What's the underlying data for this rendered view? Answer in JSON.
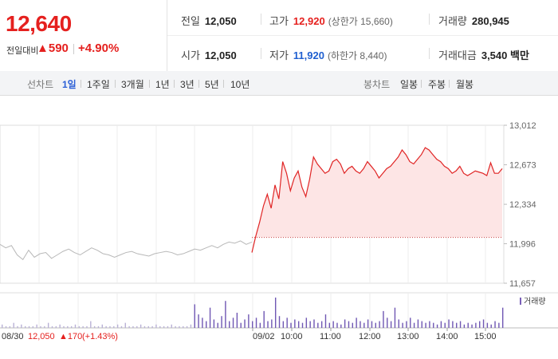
{
  "quote": {
    "price": "12,640",
    "change_label": "전일대비",
    "change_arrow": "▲",
    "change_value": "590",
    "change_percent": "+4.90%"
  },
  "stats": {
    "prev_close": {
      "label": "전일",
      "value": "12,050"
    },
    "high": {
      "label": "고가",
      "value": "12,920",
      "sub": "(상한가 15,660)"
    },
    "volume": {
      "label": "거래량",
      "value": "280,945"
    },
    "open": {
      "label": "시가",
      "value": "12,050"
    },
    "low": {
      "label": "저가",
      "value": "11,920",
      "sub": "(하한가 8,440)"
    },
    "amount": {
      "label": "거래대금",
      "value": "3,540 백만"
    }
  },
  "toolbar": {
    "line_chart_label": "선차트",
    "line_ranges": [
      "1일",
      "1주일",
      "3개월",
      "1년",
      "3년",
      "5년",
      "10년"
    ],
    "selected_range": "1일",
    "candle_chart_label": "봉차트",
    "candle_ranges": [
      "일봉",
      "주봉",
      "월봉"
    ]
  },
  "chart_data": {
    "type": "line",
    "y_ticks": [
      "13,012",
      "12,673",
      "12,334",
      "11,996",
      "11,657"
    ],
    "ylim": [
      11657,
      13012
    ],
    "prev_close_reference": 12050,
    "x_tick_labels": [
      "09/02",
      "10:00",
      "11:00",
      "12:00",
      "13:00",
      "14:00",
      "15:00"
    ],
    "prev_day": {
      "date_label": "08/30",
      "close": "12,050",
      "change": "▲170",
      "change_percent": "(+1.43%)",
      "values": [
        11990,
        11960,
        11980,
        11900,
        11860,
        11940,
        11880,
        11910,
        11920,
        11870,
        11900,
        11930,
        11950,
        11920,
        11900,
        11930,
        11960,
        11940,
        11910,
        11900,
        11880,
        11900,
        11920,
        11930,
        11910,
        11900,
        11890,
        11910,
        11920,
        11930,
        11920,
        11900,
        11910,
        11930,
        11950,
        11940,
        11960,
        11980,
        11960,
        11990,
        12010,
        12000,
        12020,
        11990,
        12010
      ]
    },
    "today": {
      "values": [
        11920,
        12060,
        12180,
        12320,
        12420,
        12300,
        12500,
        12380,
        12700,
        12600,
        12450,
        12560,
        12620,
        12480,
        12400,
        12550,
        12740,
        12680,
        12640,
        12600,
        12620,
        12700,
        12720,
        12680,
        12600,
        12640,
        12660,
        12620,
        12600,
        12640,
        12700,
        12660,
        12620,
        12560,
        12600,
        12640,
        12660,
        12700,
        12740,
        12800,
        12760,
        12700,
        12680,
        12720,
        12760,
        12820,
        12800,
        12760,
        12720,
        12700,
        12660,
        12640,
        12600,
        12620,
        12660,
        12600,
        12580,
        12600,
        12620,
        12610,
        12600,
        12580,
        12690,
        12600,
        12600,
        12640
      ]
    },
    "volume_label": "거래량",
    "volume_bars": [
      2,
      1,
      1,
      3,
      1,
      2,
      1,
      1,
      1,
      2,
      1,
      1,
      3,
      1,
      1,
      2,
      1,
      1,
      1,
      2,
      1,
      1,
      1,
      4,
      1,
      1,
      2,
      1,
      1,
      1,
      2,
      1,
      3,
      1,
      1,
      1,
      2,
      1,
      1,
      1,
      2,
      1,
      1,
      1,
      2,
      1,
      1,
      1,
      1,
      2,
      14,
      8,
      6,
      4,
      12,
      5,
      3,
      7,
      16,
      4,
      6,
      9,
      3,
      5,
      8,
      4,
      6,
      3,
      10,
      4,
      5,
      18,
      7,
      4,
      6,
      3,
      5,
      4,
      3,
      6,
      4,
      5,
      3,
      4,
      8,
      3,
      4,
      3,
      2,
      5,
      4,
      3,
      6,
      4,
      3,
      5,
      4,
      3,
      4,
      10,
      6,
      4,
      12,
      5,
      3,
      4,
      6,
      3,
      5,
      4,
      3,
      4,
      3,
      2,
      4,
      3,
      5,
      4,
      3,
      4,
      2,
      3,
      2,
      3,
      4,
      5,
      3,
      2,
      4,
      3,
      12
    ]
  }
}
